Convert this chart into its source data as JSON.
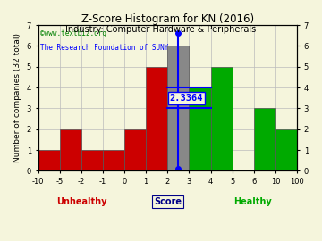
{
  "title": "Z-Score Histogram for KN (2016)",
  "subtitle": "Industry: Computer Hardware & Peripherals",
  "watermark1": "©www.textbiz.org",
  "watermark2": "The Research Foundation of SUNY",
  "xlabel": "Score",
  "ylabel": "Number of companies (32 total)",
  "unhealthy_label": "Unhealthy",
  "healthy_label": "Healthy",
  "z_score_label": "2.3364",
  "bin_labels": [
    "-10",
    "-5",
    "-2",
    "-1",
    "0",
    "1",
    "2",
    "3",
    "4",
    "5",
    "6",
    "10",
    "100"
  ],
  "counts": [
    1,
    2,
    1,
    1,
    2,
    5,
    6,
    4,
    5,
    0,
    3,
    2
  ],
  "bar_colors": [
    "#cc0000",
    "#cc0000",
    "#cc0000",
    "#cc0000",
    "#cc0000",
    "#cc0000",
    "#888888",
    "#00aa00",
    "#00aa00",
    "#00aa00",
    "#00aa00",
    "#00aa00"
  ],
  "kn_bin_index": 6,
  "ylim": [
    0,
    7
  ],
  "yticks": [
    0,
    1,
    2,
    3,
    4,
    5,
    6,
    7
  ],
  "background_color": "#f5f5dc",
  "grid_color": "#bbbbbb",
  "title_fontsize": 8.5,
  "subtitle_fontsize": 7,
  "watermark_fontsize": 5.5,
  "axis_label_fontsize": 6.5,
  "tick_fontsize": 6,
  "unhealthy_color": "#cc0000",
  "healthy_color": "#00aa00",
  "score_color": "#000088"
}
